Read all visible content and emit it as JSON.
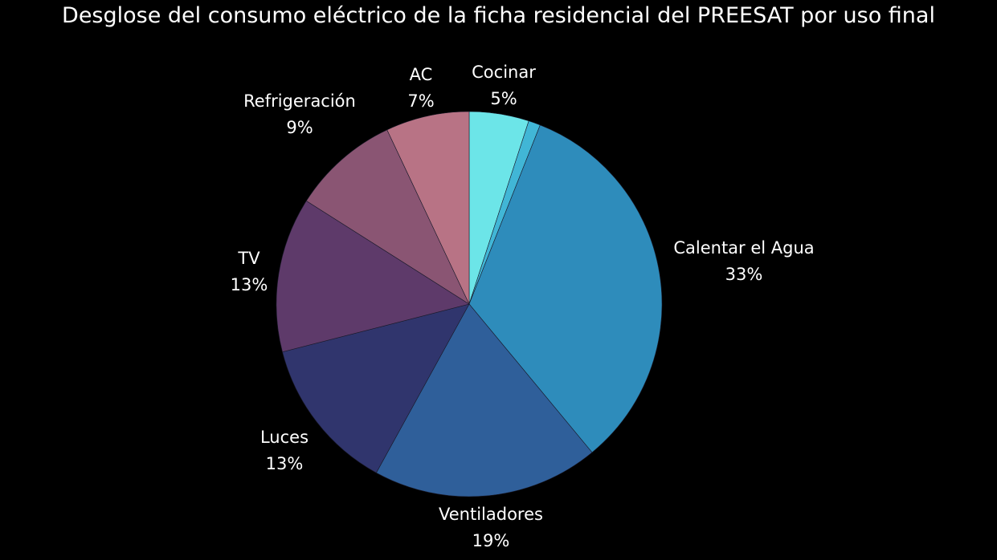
{
  "chart_data": {
    "type": "pie",
    "title": "Desglose del consumo eléctrico de la ficha residencial del PREESAT por uso final",
    "start": "top",
    "direction": "clockwise",
    "slices": [
      {
        "name": "Cocinar",
        "value": 5,
        "label": "5%",
        "color": "#6ce5e8"
      },
      {
        "name": "",
        "value": 1,
        "label": "",
        "color": "#41b6d6"
      },
      {
        "name": "Calentar el Agua",
        "value": 33,
        "label": "33%",
        "color": "#2e8cbb"
      },
      {
        "name": "Ventiladores",
        "value": 19,
        "label": "19%",
        "color": "#2f5f9a"
      },
      {
        "name": "Luces",
        "value": 13,
        "label": "13%",
        "color": "#30356d"
      },
      {
        "name": "TV",
        "value": 13,
        "label": "13%",
        "color": "#5e3a6a"
      },
      {
        "name": "Refrigeración",
        "value": 9,
        "label": "9%",
        "color": "#8a5573"
      },
      {
        "name": "AC",
        "value": 7,
        "label": "7%",
        "color": "#b87385"
      }
    ]
  }
}
